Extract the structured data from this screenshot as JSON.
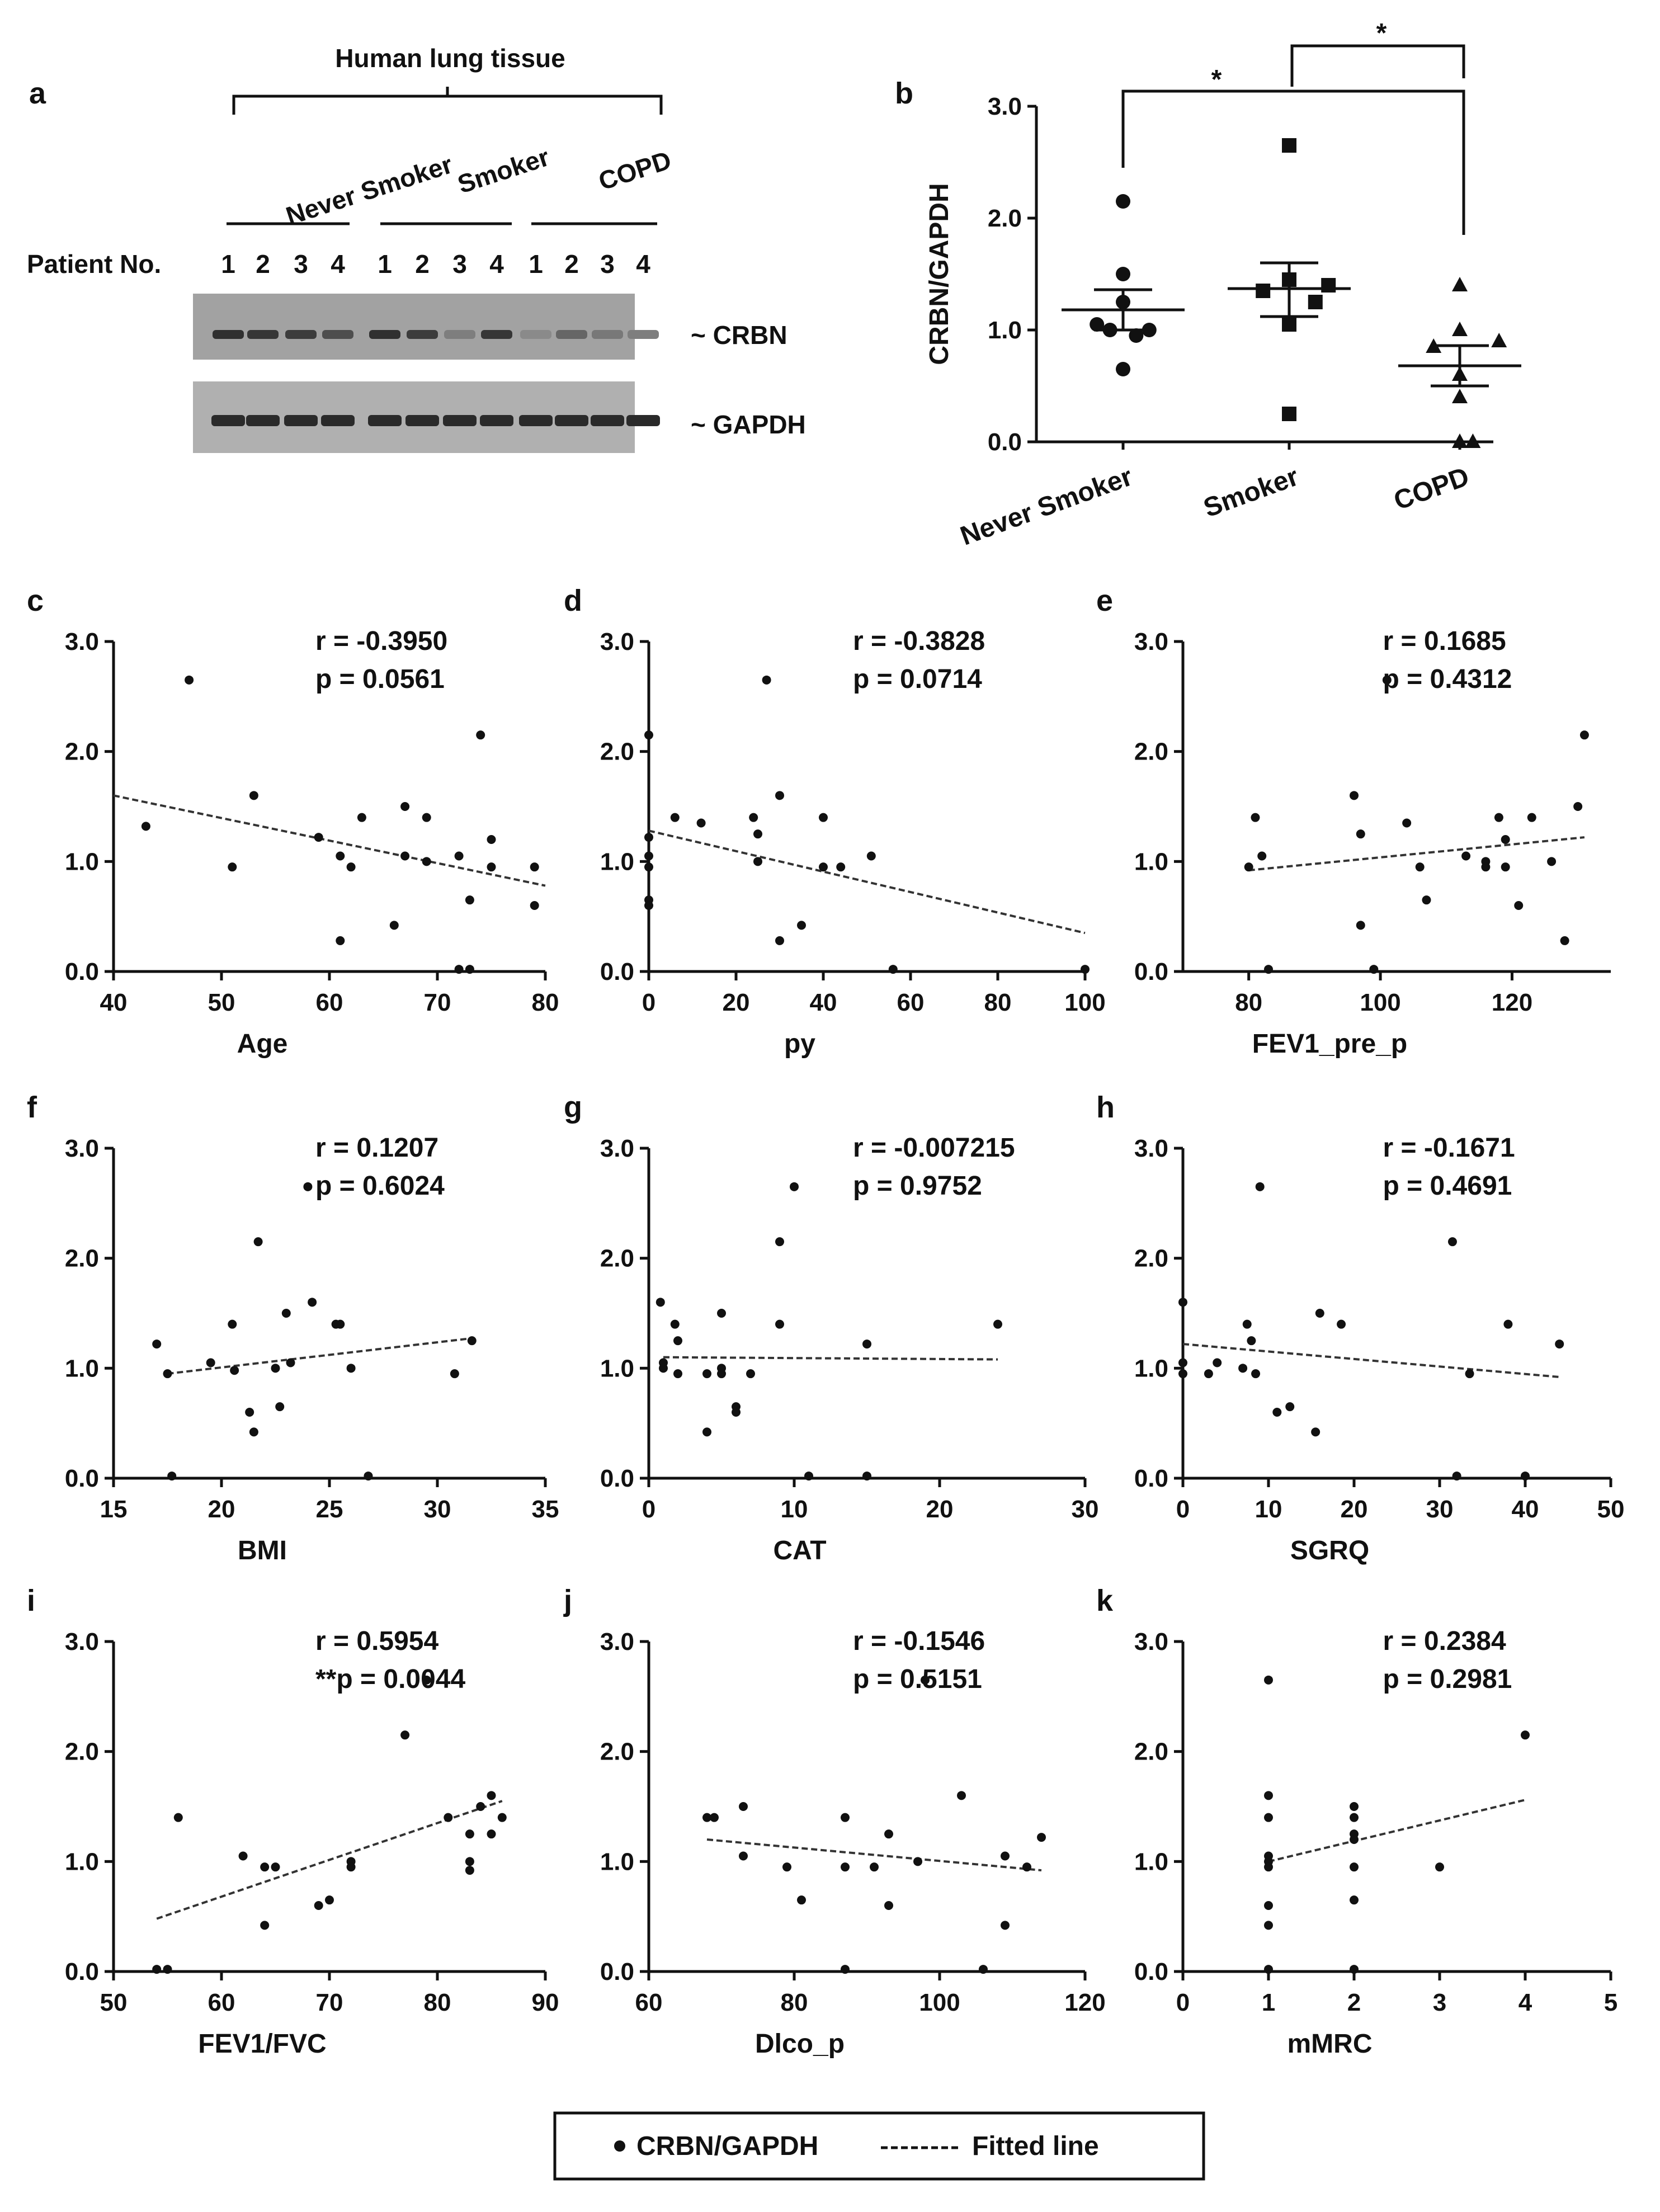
{
  "panel_a": {
    "label": "a",
    "title": "Human lung tissue",
    "groups": [
      "Never Smoker",
      "Smoker",
      "COPD"
    ],
    "patient_label": "Patient No.",
    "patient_numbers": [
      "1",
      "2",
      "3",
      "4",
      "1",
      "2",
      "3",
      "4",
      "1",
      "2",
      "3",
      "4"
    ],
    "bands": [
      "CRBN",
      "GAPDH"
    ],
    "crbn_intensity": [
      0.85,
      0.8,
      0.75,
      0.6,
      0.85,
      0.75,
      0.2,
      0.8,
      0.1,
      0.4,
      0.25,
      0.2
    ],
    "gapdh_intensity": [
      0.9,
      0.9,
      0.9,
      0.9,
      0.9,
      0.9,
      0.9,
      0.9,
      0.9,
      0.9,
      0.9,
      0.9
    ]
  },
  "chart_data": [
    {
      "id": "b",
      "type": "scatter",
      "label": "b",
      "ylabel": "CRBN/GAPDH",
      "ylim": [
        0,
        3
      ],
      "yticks": [
        "0.0",
        "1.0",
        "2.0",
        "3.0"
      ],
      "categories": [
        "Never Smoker",
        "Smoker",
        "COPD"
      ],
      "groups": [
        {
          "name": "Never Smoker",
          "marker": "circle",
          "values": [
            2.15,
            1.5,
            1.25,
            1.05,
            1.0,
            1.0,
            0.95,
            0.65
          ],
          "mean": 1.18,
          "sem_low": 1.0,
          "sem_high": 1.36
        },
        {
          "name": "Smoker",
          "marker": "square",
          "values": [
            2.65,
            1.45,
            1.4,
            1.35,
            1.25,
            1.05,
            0.25
          ],
          "mean": 1.37,
          "sem_low": 1.12,
          "sem_high": 1.6
        },
        {
          "name": "COPD",
          "marker": "triangle",
          "values": [
            1.4,
            1.0,
            0.9,
            0.85,
            0.6,
            0.4,
            0.0,
            0.0
          ],
          "mean": 0.68,
          "sem_low": 0.5,
          "sem_high": 0.86
        }
      ],
      "significance": [
        {
          "from": "Never Smoker",
          "to": "COPD",
          "label": "*"
        },
        {
          "from": "Smoker",
          "to": "COPD",
          "label": "*"
        }
      ]
    },
    {
      "id": "c",
      "type": "scatter",
      "label": "c",
      "xlabel": "Age",
      "xlim": [
        40,
        80
      ],
      "xticks": [
        "40",
        "50",
        "60",
        "70",
        "80"
      ],
      "ylim": [
        0,
        3
      ],
      "yticks": [
        "0.0",
        "1.0",
        "2.0",
        "3.0"
      ],
      "stat_r": "r = -0.3950",
      "stat_p": "p = 0.0561",
      "points": [
        [
          43,
          1.32
        ],
        [
          47,
          2.65
        ],
        [
          51,
          0.95
        ],
        [
          53,
          1.6
        ],
        [
          59,
          1.22
        ],
        [
          61,
          1.05
        ],
        [
          61,
          0.28
        ],
        [
          62,
          0.95
        ],
        [
          63,
          1.4
        ],
        [
          66,
          0.42
        ],
        [
          67,
          1.5
        ],
        [
          67,
          1.05
        ],
        [
          69,
          1.4
        ],
        [
          69,
          1.0
        ],
        [
          72,
          1.05
        ],
        [
          72,
          0.02
        ],
        [
          73,
          0.02
        ],
        [
          73,
          0.65
        ],
        [
          74,
          2.15
        ],
        [
          75,
          1.2
        ],
        [
          75,
          0.95
        ],
        [
          79,
          0.95
        ],
        [
          79,
          0.6
        ]
      ],
      "fit": [
        [
          40,
          1.6
        ],
        [
          80,
          0.78
        ]
      ]
    },
    {
      "id": "d",
      "type": "scatter",
      "label": "d",
      "xlabel": "py",
      "xlim": [
        0,
        100
      ],
      "xticks": [
        "0",
        "20",
        "40",
        "60",
        "80",
        "100"
      ],
      "ylim": [
        0,
        3
      ],
      "yticks": [
        "0.0",
        "1.0",
        "2.0",
        "3.0"
      ],
      "stat_r": "r = -0.3828",
      "stat_p": "p = 0.0714",
      "points": [
        [
          0,
          2.15
        ],
        [
          0,
          1.22
        ],
        [
          0,
          1.05
        ],
        [
          0,
          0.95
        ],
        [
          0,
          0.65
        ],
        [
          0,
          0.6
        ],
        [
          6,
          1.4
        ],
        [
          12,
          1.35
        ],
        [
          24,
          1.4
        ],
        [
          25,
          1.25
        ],
        [
          25,
          1.0
        ],
        [
          27,
          2.65
        ],
        [
          30,
          1.6
        ],
        [
          30,
          0.28
        ],
        [
          35,
          0.42
        ],
        [
          40,
          1.4
        ],
        [
          40,
          0.95
        ],
        [
          44,
          0.95
        ],
        [
          51,
          1.05
        ],
        [
          56,
          0.02
        ],
        [
          100,
          0.02
        ]
      ],
      "fit": [
        [
          0,
          1.28
        ],
        [
          100,
          0.35
        ]
      ]
    },
    {
      "id": "e",
      "type": "scatter",
      "label": "e",
      "xlabel": "FEV1_pre_p",
      "xlim": [
        70,
        135
      ],
      "xticks": [
        "80",
        "100",
        "120"
      ],
      "xtick_values": [
        80,
        100,
        120
      ],
      "ylim": [
        0,
        3
      ],
      "yticks": [
        "0.0",
        "1.0",
        "2.0",
        "3.0"
      ],
      "stat_r": "r = 0.1685",
      "stat_p": "p = 0.4312",
      "points": [
        [
          80,
          0.95
        ],
        [
          81,
          1.4
        ],
        [
          82,
          1.05
        ],
        [
          83,
          0.02
        ],
        [
          96,
          1.6
        ],
        [
          97,
          1.25
        ],
        [
          97,
          0.42
        ],
        [
          99,
          0.02
        ],
        [
          101,
          2.65
        ],
        [
          104,
          1.35
        ],
        [
          106,
          0.95
        ],
        [
          107,
          0.65
        ],
        [
          113,
          1.05
        ],
        [
          116,
          1.0
        ],
        [
          116,
          0.95
        ],
        [
          118,
          1.4
        ],
        [
          119,
          0.95
        ],
        [
          119,
          1.2
        ],
        [
          121,
          0.6
        ],
        [
          123,
          1.4
        ],
        [
          126,
          1.0
        ],
        [
          128,
          0.28
        ],
        [
          130,
          1.5
        ],
        [
          131,
          2.15
        ]
      ],
      "fit": [
        [
          80,
          0.92
        ],
        [
          131,
          1.22
        ]
      ]
    },
    {
      "id": "f",
      "type": "scatter",
      "label": "f",
      "xlabel": "BMI",
      "xlim": [
        15,
        35
      ],
      "xticks": [
        "15",
        "20",
        "25",
        "30",
        "35"
      ],
      "ylim": [
        0,
        3
      ],
      "yticks": [
        "0.0",
        "1.0",
        "2.0",
        "3.0"
      ],
      "stat_r": "r = 0.1207",
      "stat_p": "p = 0.6024",
      "points": [
        [
          17,
          1.22
        ],
        [
          17.5,
          0.95
        ],
        [
          17.7,
          0.02
        ],
        [
          19.5,
          1.05
        ],
        [
          20.5,
          1.4
        ],
        [
          20.6,
          0.98
        ],
        [
          21.3,
          0.6
        ],
        [
          21.5,
          0.42
        ],
        [
          21.7,
          2.15
        ],
        [
          22.5,
          1.0
        ],
        [
          22.7,
          0.65
        ],
        [
          23,
          1.5
        ],
        [
          23.2,
          1.05
        ],
        [
          24,
          2.65
        ],
        [
          24.2,
          1.6
        ],
        [
          25.3,
          1.4
        ],
        [
          25.5,
          1.4
        ],
        [
          26,
          1.0
        ],
        [
          26.8,
          0.02
        ],
        [
          30.8,
          0.95
        ],
        [
          31.6,
          1.25
        ]
      ],
      "fit": [
        [
          17.5,
          0.95
        ],
        [
          31.5,
          1.27
        ]
      ]
    },
    {
      "id": "g",
      "type": "scatter",
      "label": "g",
      "xlabel": "CAT",
      "xlim": [
        0,
        30
      ],
      "xticks": [
        "0",
        "10",
        "20",
        "30"
      ],
      "ylim": [
        0,
        3
      ],
      "yticks": [
        "0.0",
        "1.0",
        "2.0",
        "3.0"
      ],
      "stat_r": "r = -0.007215",
      "stat_p": "p = 0.9752",
      "points": [
        [
          0.8,
          1.6
        ],
        [
          1,
          1.05
        ],
        [
          1,
          1.0
        ],
        [
          1.8,
          1.4
        ],
        [
          2,
          1.25
        ],
        [
          2,
          0.95
        ],
        [
          4,
          0.42
        ],
        [
          4,
          0.95
        ],
        [
          5,
          1.5
        ],
        [
          5,
          1.0
        ],
        [
          5,
          0.95
        ],
        [
          6,
          0.65
        ],
        [
          6,
          0.6
        ],
        [
          7,
          0.95
        ],
        [
          9,
          2.15
        ],
        [
          9,
          1.4
        ],
        [
          10,
          2.65
        ],
        [
          11,
          0.02
        ],
        [
          15,
          1.22
        ],
        [
          15,
          0.02
        ],
        [
          24,
          1.4
        ]
      ],
      "fit": [
        [
          1,
          1.1
        ],
        [
          24,
          1.08
        ]
      ]
    },
    {
      "id": "h",
      "type": "scatter",
      "label": "h",
      "xlabel": "SGRQ",
      "xlim": [
        0,
        50
      ],
      "xticks": [
        "0",
        "10",
        "20",
        "30",
        "40",
        "50"
      ],
      "ylim": [
        0,
        3
      ],
      "yticks": [
        "0.0",
        "1.0",
        "2.0",
        "3.0"
      ],
      "stat_r": "r = -0.1671",
      "stat_p": "p = 0.4691",
      "points": [
        [
          0,
          1.6
        ],
        [
          0,
          1.05
        ],
        [
          0,
          0.95
        ],
        [
          3,
          0.95
        ],
        [
          4,
          1.05
        ],
        [
          7,
          1.0
        ],
        [
          7.5,
          1.4
        ],
        [
          8,
          1.25
        ],
        [
          8.5,
          0.95
        ],
        [
          9,
          2.65
        ],
        [
          11,
          0.6
        ],
        [
          12.5,
          0.65
        ],
        [
          15.5,
          0.42
        ],
        [
          16,
          1.5
        ],
        [
          18.5,
          1.4
        ],
        [
          31.5,
          2.15
        ],
        [
          32,
          0.02
        ],
        [
          33.5,
          0.95
        ],
        [
          38,
          1.4
        ],
        [
          40,
          0.02
        ],
        [
          44,
          1.22
        ]
      ],
      "fit": [
        [
          0,
          1.22
        ],
        [
          44,
          0.92
        ]
      ]
    },
    {
      "id": "i",
      "type": "scatter",
      "label": "i",
      "xlabel": "FEV1/FVC",
      "xlim": [
        50,
        90
      ],
      "xticks": [
        "50",
        "60",
        "70",
        "80",
        "90"
      ],
      "ylim": [
        0,
        3
      ],
      "yticks": [
        "0.0",
        "1.0",
        "2.0",
        "3.0"
      ],
      "stat_r": "r = 0.5954",
      "stat_p": "**p = 0.0044",
      "points": [
        [
          54,
          0.02
        ],
        [
          55,
          0.02
        ],
        [
          56,
          1.4
        ],
        [
          62,
          1.05
        ],
        [
          64,
          0.95
        ],
        [
          64,
          0.42
        ],
        [
          65,
          0.95
        ],
        [
          69,
          0.6
        ],
        [
          70,
          0.65
        ],
        [
          72,
          1.0
        ],
        [
          72,
          0.95
        ],
        [
          77,
          2.15
        ],
        [
          79,
          2.65
        ],
        [
          81,
          1.4
        ],
        [
          83,
          1.25
        ],
        [
          83,
          1.0
        ],
        [
          83,
          0.92
        ],
        [
          84,
          1.5
        ],
        [
          85,
          1.6
        ],
        [
          85,
          1.25
        ],
        [
          86,
          1.4
        ]
      ],
      "fit": [
        [
          54,
          0.48
        ],
        [
          86,
          1.55
        ]
      ]
    },
    {
      "id": "j",
      "type": "scatter",
      "label": "j",
      "xlabel": "Dlco_p",
      "xlim": [
        60,
        120
      ],
      "xticks": [
        "60",
        "80",
        "100",
        "120"
      ],
      "ylim": [
        0,
        3
      ],
      "yticks": [
        "0.0",
        "1.0",
        "2.0",
        "3.0"
      ],
      "stat_r": "r = -0.1546",
      "stat_p": "p = 0.5151",
      "points": [
        [
          68,
          1.4
        ],
        [
          69,
          1.4
        ],
        [
          73,
          1.5
        ],
        [
          73,
          1.05
        ],
        [
          79,
          0.95
        ],
        [
          81,
          0.65
        ],
        [
          87,
          1.4
        ],
        [
          87,
          0.95
        ],
        [
          87,
          0.02
        ],
        [
          91,
          0.95
        ],
        [
          93,
          1.25
        ],
        [
          93,
          0.6
        ],
        [
          97,
          1.0
        ],
        [
          98,
          2.65
        ],
        [
          103,
          1.6
        ],
        [
          106,
          0.02
        ],
        [
          109,
          1.05
        ],
        [
          109,
          0.42
        ],
        [
          112,
          0.95
        ],
        [
          114,
          1.22
        ]
      ],
      "fit": [
        [
          68,
          1.2
        ],
        [
          114,
          0.92
        ]
      ]
    },
    {
      "id": "k",
      "type": "scatter",
      "label": "k",
      "xlabel": "mMRC",
      "xlim": [
        0,
        5
      ],
      "xticks": [
        "0",
        "1",
        "2",
        "3",
        "4",
        "5"
      ],
      "ylim": [
        0,
        3
      ],
      "yticks": [
        "0.0",
        "1.0",
        "2.0",
        "3.0"
      ],
      "stat_r": "r = 0.2384",
      "stat_p": "p = 0.2981",
      "points": [
        [
          1,
          2.65
        ],
        [
          1,
          1.6
        ],
        [
          1,
          1.4
        ],
        [
          1,
          1.05
        ],
        [
          1,
          1.0
        ],
        [
          1,
          0.95
        ],
        [
          1,
          0.6
        ],
        [
          1,
          0.42
        ],
        [
          1,
          0.02
        ],
        [
          2,
          1.5
        ],
        [
          2,
          1.4
        ],
        [
          2,
          1.25
        ],
        [
          2,
          1.2
        ],
        [
          2,
          0.95
        ],
        [
          2,
          0.65
        ],
        [
          2,
          0.02
        ],
        [
          3,
          0.95
        ],
        [
          4,
          2.15
        ]
      ],
      "fit": [
        [
          1,
          1.0
        ],
        [
          4,
          1.56
        ]
      ]
    }
  ],
  "legend": {
    "marker_label": "CRBN/GAPDH",
    "line_label": "Fitted line"
  }
}
